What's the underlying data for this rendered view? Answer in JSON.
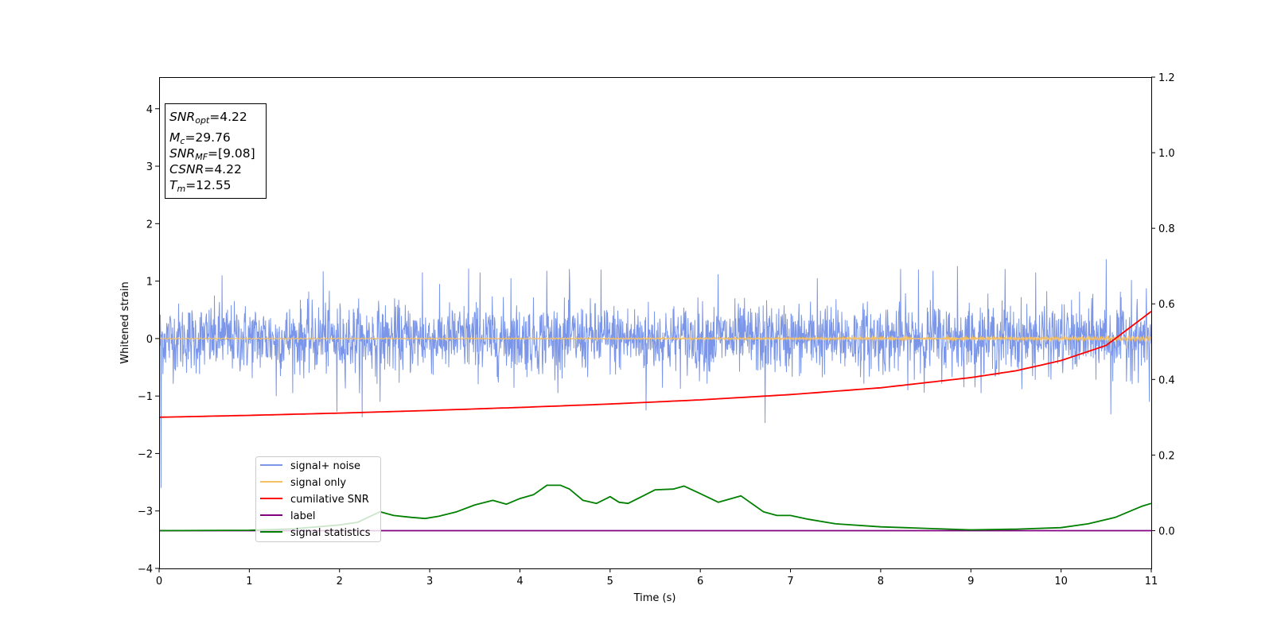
{
  "chart_data": {
    "type": "line",
    "xlabel": "Time (s)",
    "ylabel": "Whitened strain",
    "xlim": [
      0,
      11
    ],
    "ylim": [
      -4,
      4.55
    ],
    "ylim_right": [
      -0.1,
      1.2
    ],
    "x_ticks": [
      0,
      1,
      2,
      3,
      4,
      5,
      6,
      7,
      8,
      9,
      10,
      11
    ],
    "y_ticks": [
      -4,
      -3,
      -2,
      -1,
      0,
      1,
      2,
      3,
      4
    ],
    "y_ticks_right": [
      0.0,
      0.2,
      0.4,
      0.6,
      0.8,
      1.0,
      1.2
    ],
    "y_tick_labels": [
      "−4",
      "−3",
      "−2",
      "−1",
      "0",
      "1",
      "2",
      "3",
      "4"
    ],
    "y_tick_labels_right": [
      "0.0",
      "0.2",
      "0.4",
      "0.6",
      "0.8",
      "1.0",
      "1.2"
    ],
    "legend_position": "lower-left",
    "grid": false,
    "series": [
      {
        "name": "signal+ noise",
        "color": "#7b96e8",
        "axis": "left",
        "description_values": {
          "mean": 0.0,
          "typical_range": [
            -0.75,
            0.75
          ]
        },
        "spikes": [
          [
            0.02,
            -2.6
          ],
          [
            0.7,
            1.1
          ],
          [
            1.3,
            -1.0
          ],
          [
            1.82,
            1.17
          ],
          [
            1.97,
            -1.27
          ],
          [
            2.25,
            -1.37
          ],
          [
            2.45,
            -1.1
          ],
          [
            2.92,
            1.15
          ],
          [
            3.43,
            1.22
          ],
          [
            3.56,
            1.15
          ],
          [
            3.9,
            1.05
          ],
          [
            4.3,
            1.18
          ],
          [
            4.55,
            1.21
          ],
          [
            4.9,
            1.2
          ],
          [
            5.4,
            -1.25
          ],
          [
            6.2,
            1.12
          ],
          [
            6.72,
            -1.47
          ],
          [
            7.3,
            1.05
          ],
          [
            8.22,
            1.21
          ],
          [
            8.42,
            1.2
          ],
          [
            8.58,
            1.18
          ],
          [
            8.85,
            1.26
          ],
          [
            9.38,
            1.21
          ],
          [
            9.72,
            1.15
          ],
          [
            10.5,
            1.38
          ],
          [
            10.55,
            -1.32
          ],
          [
            10.78,
            1.02
          ],
          [
            10.98,
            -1.1
          ]
        ]
      },
      {
        "name": "signal only",
        "color": "#f5c167",
        "axis": "left",
        "description_values": {
          "mean": 0.0,
          "amplitude_start": 0.01,
          "amplitude_end": 0.04
        }
      },
      {
        "name": "cumilative SNR",
        "color": "#ff0000",
        "axis": "right",
        "x": [
          0,
          1,
          2,
          3,
          4,
          5,
          6,
          7,
          8,
          9,
          9.5,
          10,
          10.5,
          11
        ],
        "y": [
          0.3,
          0.305,
          0.311,
          0.318,
          0.326,
          0.335,
          0.346,
          0.36,
          0.378,
          0.405,
          0.423,
          0.45,
          0.49,
          0.58
        ]
      },
      {
        "name": "label",
        "color": "#800080",
        "axis": "right",
        "x": [
          0,
          11
        ],
        "y": [
          0.0,
          0.0
        ]
      },
      {
        "name": "signal statistics",
        "color": "#008000",
        "axis": "right",
        "x": [
          0,
          1,
          1.5,
          2,
          2.2,
          2.45,
          2.6,
          2.8,
          2.95,
          3.1,
          3.3,
          3.5,
          3.7,
          3.85,
          4.0,
          4.15,
          4.3,
          4.45,
          4.55,
          4.7,
          4.85,
          5.0,
          5.1,
          5.2,
          5.35,
          5.5,
          5.7,
          5.82,
          6.0,
          6.2,
          6.45,
          6.7,
          6.85,
          7.0,
          7.2,
          7.5,
          8.0,
          8.5,
          9.0,
          9.5,
          10.0,
          10.3,
          10.6,
          10.9,
          11.0
        ],
        "y": [
          0.0,
          0.001,
          0.005,
          0.015,
          0.022,
          0.05,
          0.04,
          0.035,
          0.032,
          0.038,
          0.05,
          0.068,
          0.08,
          0.07,
          0.085,
          0.095,
          0.12,
          0.12,
          0.11,
          0.08,
          0.072,
          0.09,
          0.075,
          0.072,
          0.09,
          0.108,
          0.11,
          0.118,
          0.098,
          0.075,
          0.092,
          0.05,
          0.04,
          0.04,
          0.03,
          0.018,
          0.01,
          0.006,
          0.002,
          0.004,
          0.008,
          0.018,
          0.035,
          0.065,
          0.072
        ]
      }
    ]
  },
  "stats_box": {
    "lines": [
      {
        "var": "SNR",
        "sub": "opt",
        "value": "=4.22"
      },
      {
        "var": "M",
        "sub": "c",
        "value": "=29.76"
      },
      {
        "var": "SNR",
        "sub": "MF",
        "value": "=[9.08]"
      },
      {
        "var": "CSNR",
        "sub": "",
        "value": "=4.22"
      },
      {
        "var": "T",
        "sub": "m",
        "value": "=12.55"
      }
    ]
  }
}
